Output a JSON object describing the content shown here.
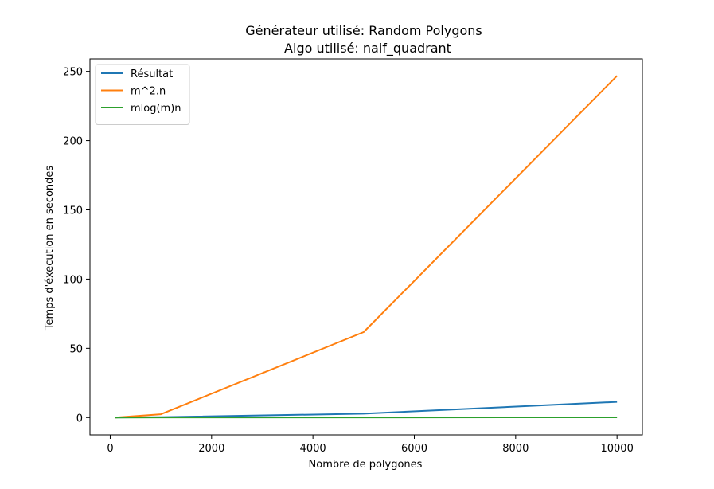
{
  "chart_data": {
    "type": "line",
    "title": "Générateur utilisé: Random Polygons",
    "subtitle": "Algo utilisé: naif_quadrant",
    "xlabel": "Nombre de polygones",
    "ylabel": "Temps d'éxecution en secondes",
    "xlim": [
      -400,
      10500
    ],
    "ylim": [
      -12.5,
      259
    ],
    "xticks": [
      0,
      2000,
      4000,
      6000,
      8000,
      10000
    ],
    "yticks": [
      0,
      50,
      100,
      150,
      200,
      250
    ],
    "grid": false,
    "legend_position": "top-left",
    "x": [
      100,
      1000,
      5000,
      10000
    ],
    "series": [
      {
        "name": "Résultat",
        "color": "#1f77b4",
        "values": [
          0.05,
          0.3,
          2.8,
          11.3
        ]
      },
      {
        "name": "m^2.n",
        "color": "#ff7f0e",
        "values": [
          0.0,
          2.4,
          61.7,
          246.8
        ]
      },
      {
        "name": "mlog(m)n",
        "color": "#2ca02c",
        "values": [
          0.0,
          0.05,
          0.1,
          0.15
        ]
      }
    ]
  }
}
